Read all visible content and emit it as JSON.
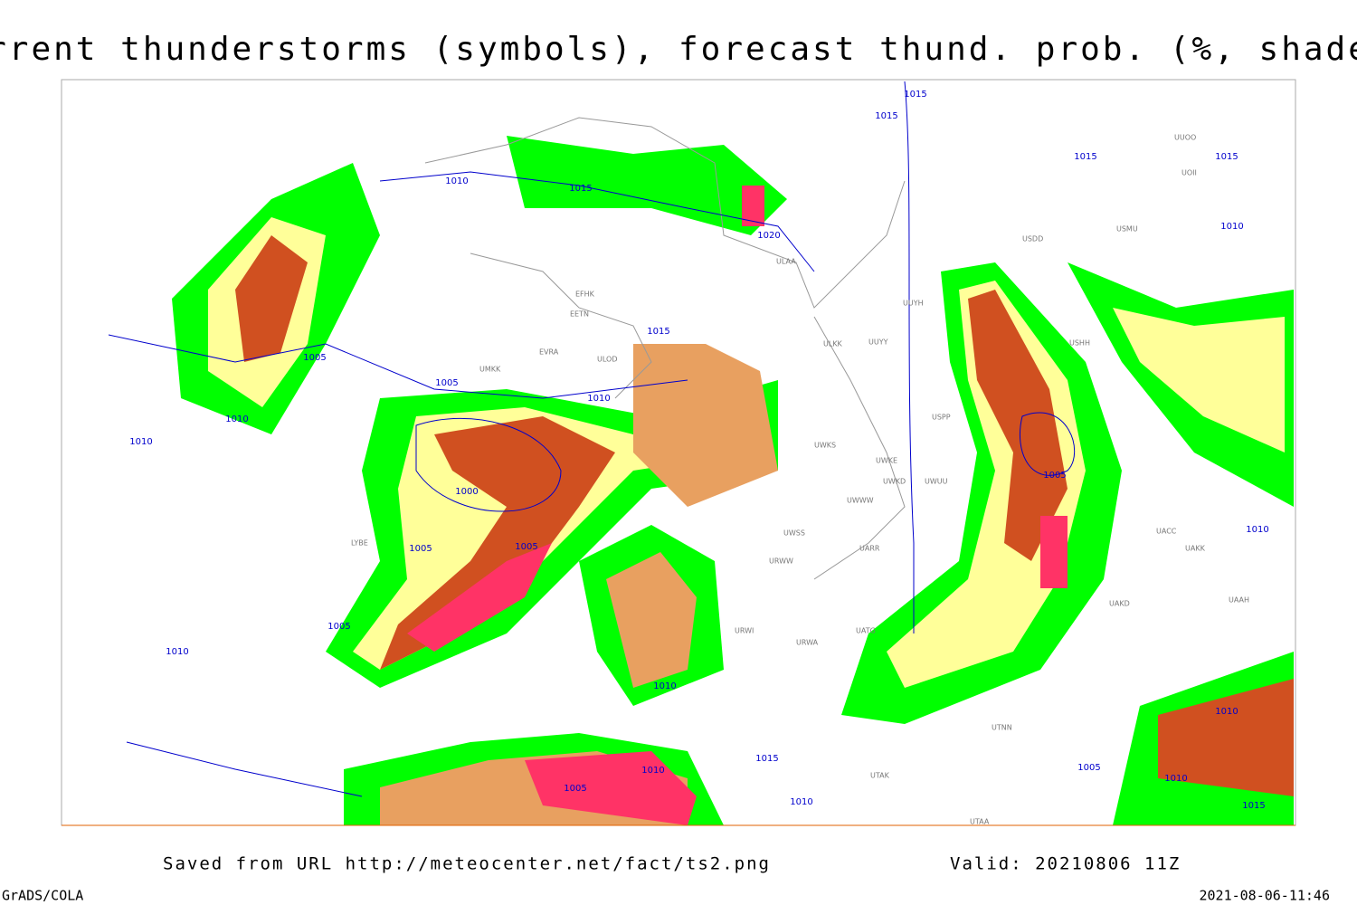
{
  "title": "Current thunderstorms (symbols), forecast thund. prob. (%, shaded)",
  "footer": {
    "source": "Saved from URL http://meteocenter.net/fact/ts2.png",
    "valid": "Valid: 20210806 11Z",
    "software": "GrADS/COLA",
    "timestamp": "2021-08-06-11:46"
  },
  "isobar_labels": [
    "1015",
    "1015",
    "1015",
    "1015",
    "1010",
    "1010",
    "1015",
    "1020",
    "1015",
    "1005",
    "1005",
    "1010",
    "1010",
    "1010",
    "1000",
    "1005",
    "1005",
    "1010",
    "1005",
    "1005",
    "1010",
    "1010",
    "1015",
    "1005",
    "1010",
    "1010",
    "1005",
    "1010",
    "1015",
    "1010"
  ],
  "stations": [
    "ULAA",
    "EFHK",
    "EETN",
    "EVRA",
    "ULOD",
    "UMKK",
    "ULKK",
    "UUYY",
    "UUYH",
    "USPP",
    "UWKS",
    "UWKE",
    "UWKD",
    "UWUU",
    "UWWW",
    "UWSS",
    "UARR",
    "URWW",
    "URWI",
    "UATG",
    "URWA",
    "UAKD",
    "UAKK",
    "UACC",
    "USMU",
    "USDD",
    "UTAK",
    "UTNN",
    "UTAA",
    "USHH",
    "LYBE",
    "UUOO",
    "UOII",
    "UAAH"
  ]
}
